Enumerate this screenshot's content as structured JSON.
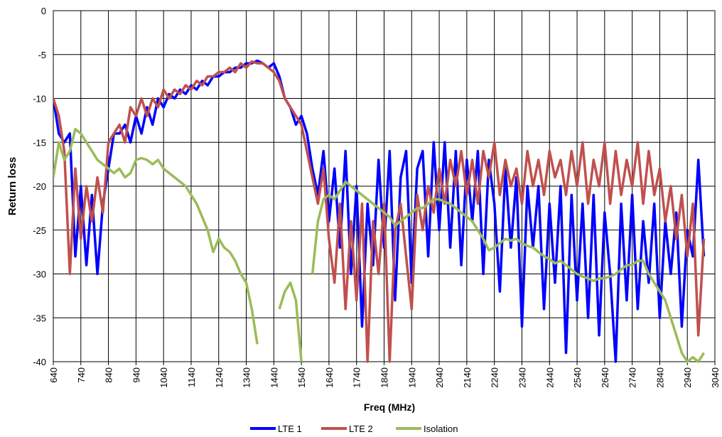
{
  "chart_data": {
    "type": "line",
    "xlabel": "Freq (MHz)",
    "ylabel": "Return loss",
    "x": [
      640,
      660,
      680,
      700,
      720,
      740,
      760,
      780,
      800,
      820,
      840,
      860,
      880,
      900,
      920,
      940,
      960,
      980,
      1000,
      1020,
      1040,
      1060,
      1080,
      1100,
      1120,
      1140,
      1160,
      1180,
      1200,
      1220,
      1240,
      1260,
      1280,
      1300,
      1320,
      1340,
      1360,
      1380,
      1400,
      1420,
      1440,
      1460,
      1480,
      1500,
      1520,
      1540,
      1560,
      1580,
      1600,
      1620,
      1640,
      1660,
      1680,
      1700,
      1720,
      1740,
      1760,
      1780,
      1800,
      1820,
      1840,
      1860,
      1880,
      1900,
      1920,
      1940,
      1960,
      1980,
      2000,
      2020,
      2040,
      2060,
      2080,
      2100,
      2120,
      2140,
      2160,
      2180,
      2200,
      2220,
      2240,
      2260,
      2280,
      2300,
      2320,
      2340,
      2360,
      2380,
      2400,
      2420,
      2440,
      2460,
      2480,
      2500,
      2520,
      2540,
      2560,
      2580,
      2600,
      2620,
      2640,
      2660,
      2680,
      2700,
      2720,
      2740,
      2760,
      2780,
      2800,
      2820,
      2840,
      2860,
      2880,
      2900,
      2920,
      2940,
      2960,
      2980,
      3000
    ],
    "series": [
      {
        "name": "LTE 1",
        "color": "#0000ff",
        "values": [
          -10,
          -14,
          -15,
          -14,
          -28,
          -20,
          -29,
          -21,
          -30,
          -22,
          -18,
          -14,
          -14,
          -13,
          -15,
          -12,
          -14,
          -11,
          -13,
          -10,
          -11,
          -9.5,
          -10,
          -9,
          -9.5,
          -8.5,
          -9,
          -8,
          -8.5,
          -7.5,
          -7.5,
          -7,
          -7,
          -6.5,
          -6.5,
          -6,
          -6,
          -5.7,
          -6,
          -6.5,
          -6,
          -7.5,
          -10,
          -11,
          -13,
          -12,
          -14,
          -18,
          -21,
          -16,
          -24,
          -18,
          -27,
          -16,
          -30,
          -20,
          -36,
          -22,
          -29,
          -17,
          -27,
          -16,
          -33,
          -19,
          -16,
          -31,
          -18,
          -16,
          -28,
          -15,
          -25,
          -15,
          -27,
          -16,
          -29,
          -17,
          -24,
          -16,
          -30,
          -17,
          -22,
          -32,
          -18,
          -27,
          -19,
          -36,
          -20,
          -27,
          -20,
          -34,
          -22,
          -31,
          -20,
          -39,
          -21,
          -33,
          -22,
          -35,
          -21,
          -37,
          -23,
          -30,
          -40,
          -22,
          -33,
          -21,
          -34,
          -24,
          -31,
          -22,
          -35,
          -24,
          -30,
          -23,
          -36,
          -25,
          -28,
          -17,
          -28
        ]
      },
      {
        "name": "LTE 2",
        "color": "#c0504d",
        "values": [
          -10,
          -12,
          -16,
          -30,
          -18,
          -26,
          -20,
          -24,
          -19,
          -23,
          -15,
          -14,
          -13,
          -15,
          -11,
          -12,
          -10,
          -12,
          -10,
          -11,
          -9,
          -10,
          -9,
          -9.5,
          -8.5,
          -9,
          -8,
          -8.5,
          -7.5,
          -7.5,
          -7,
          -7,
          -6.5,
          -7,
          -6,
          -6.5,
          -5.8,
          -6,
          -6,
          -6.5,
          -7,
          -8,
          -10,
          -11,
          -12,
          -13,
          -16,
          -19,
          -22,
          -18,
          -26,
          -31,
          -22,
          -34,
          -24,
          -33,
          -22,
          -40,
          -24,
          -30,
          -22,
          -40,
          -25,
          -22,
          -28,
          -34,
          -21,
          -25,
          -20,
          -23,
          -18,
          -22,
          -17,
          -20,
          -16,
          -21,
          -17,
          -22,
          -16,
          -19,
          -15,
          -21,
          -17,
          -20,
          -18,
          -22,
          -16,
          -20,
          -17,
          -21,
          -16,
          -19,
          -17,
          -21,
          -16,
          -20,
          -15,
          -22,
          -17,
          -20,
          -15,
          -22,
          -16,
          -21,
          -17,
          -20,
          -15,
          -22,
          -16,
          -21,
          -18,
          -24,
          -20,
          -26,
          -21,
          -28,
          -22,
          -37,
          -26
        ]
      },
      {
        "name": "Isolation",
        "color": "#9bbb59",
        "values": [
          -19,
          -15,
          -17,
          -16,
          -13.5,
          -14,
          -15,
          -16,
          -17,
          -17.5,
          -18,
          -18.5,
          -18,
          -19,
          -18.5,
          -17,
          -16.8,
          -17,
          -17.5,
          -17,
          -18,
          -18.5,
          -19,
          -19.5,
          -20,
          -21,
          -22,
          -23.5,
          -25,
          -27.5,
          -26,
          -27,
          -27.5,
          -28.5,
          -30,
          -31,
          -34,
          -38,
          null,
          null,
          null,
          -34,
          -32,
          -31,
          -33,
          -40,
          null,
          -30,
          -24,
          -21.5,
          -21,
          -21.5,
          -20.5,
          -19.5,
          -20,
          -20.5,
          -21,
          -21.5,
          -22,
          -22.5,
          -23,
          -23.5,
          -24.5,
          -24,
          -23.5,
          -23,
          -22.5,
          -22.5,
          -22,
          -21.5,
          -21.5,
          -21.8,
          -22,
          -22.5,
          -23,
          -23.5,
          -24,
          -25,
          -26,
          -27.3,
          -27,
          -26.5,
          -26,
          -26.2,
          -26,
          -26.5,
          -26.8,
          -27,
          -27.5,
          -28,
          -28.3,
          -28.8,
          -28.5,
          -29,
          -29.5,
          -30,
          -30.3,
          -30.5,
          -30.8,
          -30.5,
          -30.5,
          -30.3,
          -30,
          -29.5,
          -29,
          -29,
          -28.5,
          -28.5,
          -30,
          -31,
          -32,
          -33,
          -35,
          -37,
          -39,
          -40,
          -39.5,
          -40,
          -39
        ]
      }
    ],
    "xlim": [
      640,
      3040
    ],
    "xticks": [
      640,
      740,
      840,
      940,
      1040,
      1140,
      1240,
      1340,
      1440,
      1540,
      1640,
      1740,
      1840,
      1940,
      2040,
      2140,
      2240,
      2340,
      2440,
      2540,
      2640,
      2740,
      2840,
      2940,
      3040
    ],
    "ylim": [
      -40,
      0
    ],
    "yticks": [
      0,
      -5,
      -10,
      -15,
      -20,
      -25,
      -30,
      -35,
      -40
    ],
    "grid": true,
    "legend": "bottom"
  }
}
